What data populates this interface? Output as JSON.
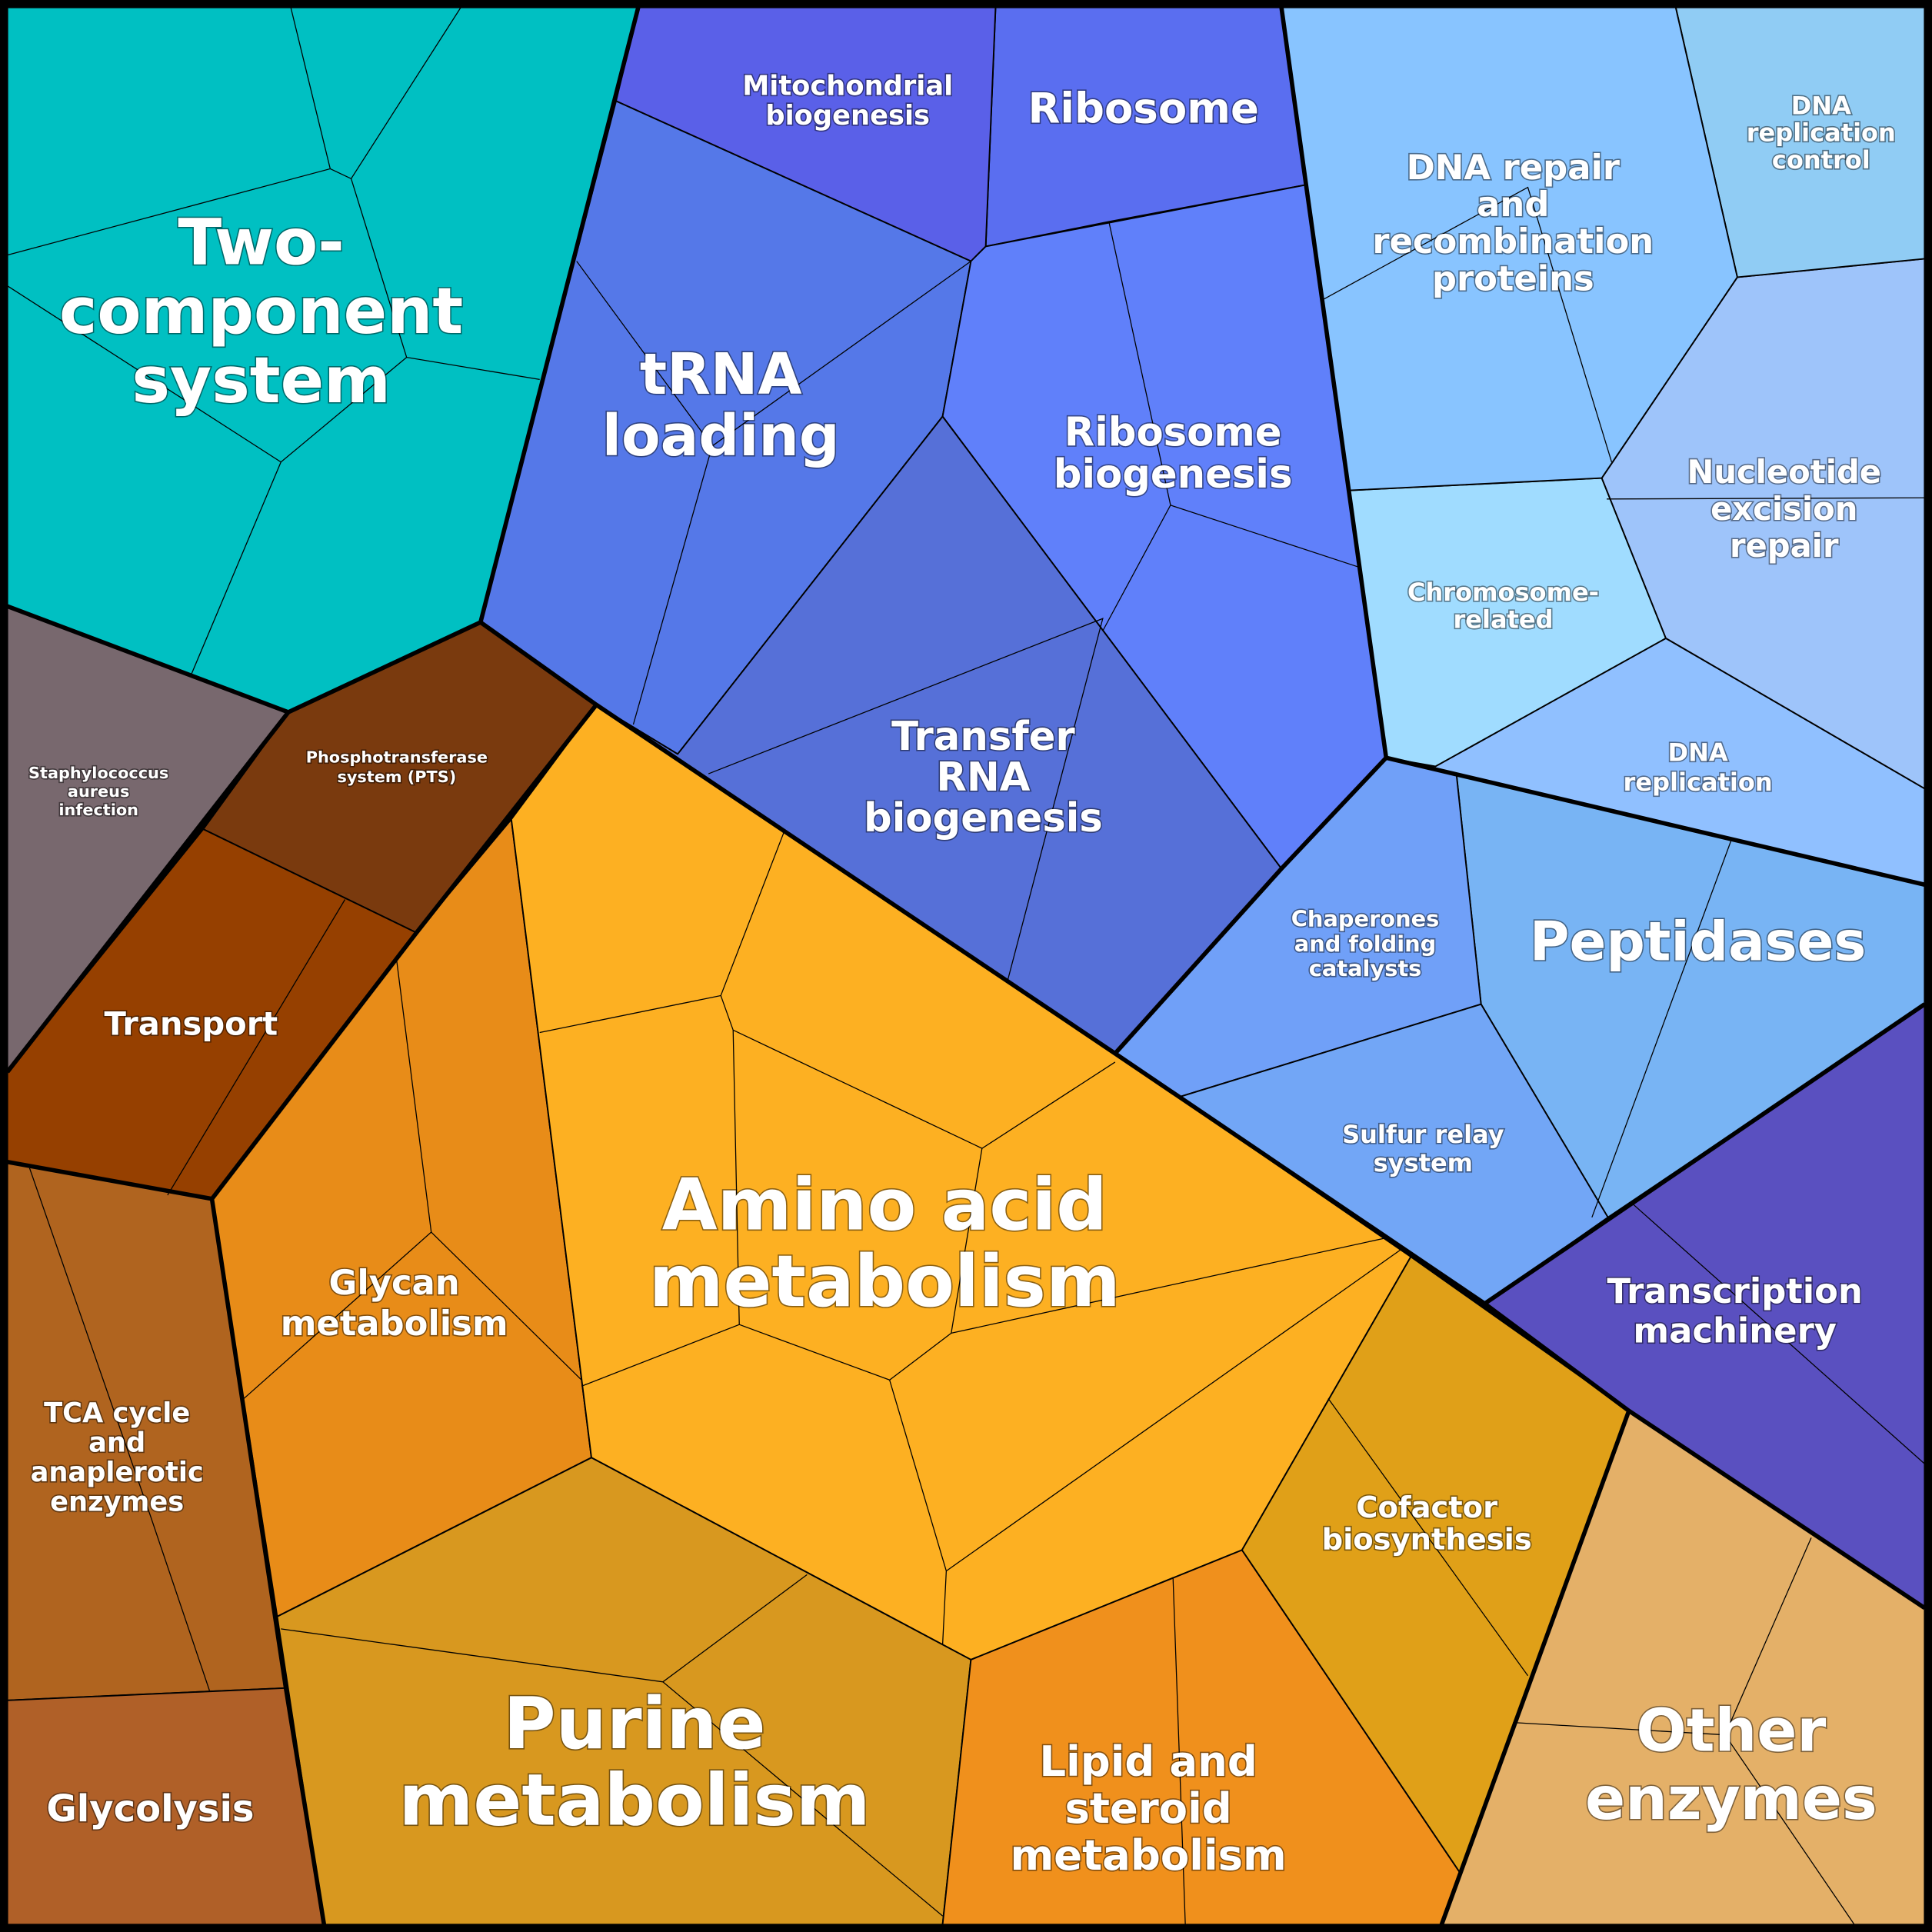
{
  "regions": [
    {
      "lines": [
        "Two-",
        "component",
        "system"
      ]
    },
    {
      "lines": [
        "Staphylococcus",
        "aureus",
        "infection"
      ]
    },
    {
      "lines": [
        "Phosphotransferase",
        "system (PTS)"
      ]
    },
    {
      "lines": [
        "Transport"
      ]
    },
    {
      "lines": [
        "TCA cycle",
        "and",
        "anaplerotic",
        "enzymes"
      ]
    },
    {
      "lines": [
        "Glycolysis"
      ]
    },
    {
      "lines": [
        "Glycan",
        "metabolism"
      ]
    },
    {
      "lines": [
        "Amino acid",
        "metabolism"
      ]
    },
    {
      "lines": [
        "Purine",
        "metabolism"
      ]
    },
    {
      "lines": [
        "Lipid and",
        "steroid",
        "metabolism"
      ]
    },
    {
      "lines": [
        "Cofactor",
        "biosynthesis"
      ]
    },
    {
      "lines": [
        "Other",
        "enzymes"
      ]
    },
    {
      "lines": [
        "Transcription",
        "machinery"
      ]
    },
    {
      "lines": [
        "Peptidases"
      ]
    },
    {
      "lines": [
        "Chaperones",
        "and folding",
        "catalysts"
      ]
    },
    {
      "lines": [
        "Sulfur relay",
        "system"
      ]
    },
    {
      "lines": [
        "DNA",
        "replication"
      ]
    },
    {
      "lines": [
        "Chromosome-",
        "related"
      ]
    },
    {
      "lines": [
        "Nucleotide",
        "excision",
        "repair"
      ]
    },
    {
      "lines": [
        "DNA",
        "replication",
        "control"
      ]
    },
    {
      "lines": [
        "DNA repair",
        "and",
        "recombination",
        "proteins"
      ]
    },
    {
      "lines": [
        "Ribosome"
      ]
    },
    {
      "lines": [
        "Mitochondrial",
        "biogenesis"
      ]
    },
    {
      "lines": [
        "tRNA",
        "loading"
      ]
    },
    {
      "lines": [
        "Ribosome",
        "biogenesis"
      ]
    },
    {
      "lines": [
        "Transfer",
        "RNA",
        "biogenesis"
      ]
    }
  ]
}
